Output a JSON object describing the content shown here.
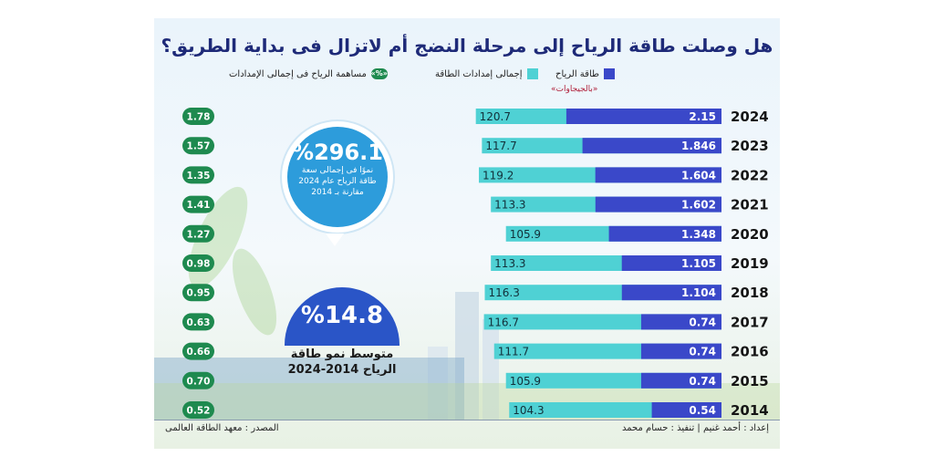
{
  "title": "هل وصلت طاقة الرياح إلى مرحلة النضج أم لاتزال فى بداية الطريق؟",
  "legend": {
    "wind": "طاقة الرياح",
    "total": "إجمالى إمدادات الطاقة",
    "share": "مساهمة الرياح فى إجمالى الإمدادات",
    "share_badge": "«%»"
  },
  "unit_note": "«بالجيجاوات»",
  "colors": {
    "wind": "#3a48c9",
    "total": "#4fd1d4",
    "share": "#1e8a4f",
    "title": "#1e2a78"
  },
  "highlight_growth": {
    "value": "%296.1",
    "line1": "نموًا فى إجمالى سعة",
    "line2": "طاقة الرياح عام 2024",
    "line3": "مقارنة بـ 2014"
  },
  "highlight_avg": {
    "value": "%14.8",
    "line1": "متوسط نمو طاقة",
    "line2": "الرياح 2014-2024"
  },
  "footer": {
    "source": "المصدر : معهد الطاقة العالمى",
    "credits": "إعداد : أحمد غنيم | تنفيذ : حسام محمد"
  },
  "chart_data": {
    "type": "bar",
    "categories": [
      "2024",
      "2023",
      "2022",
      "2021",
      "2020",
      "2019",
      "2018",
      "2017",
      "2016",
      "2015",
      "2014"
    ],
    "series": [
      {
        "name": "طاقة الرياح",
        "values": [
          2.15,
          1.846,
          1.604,
          1.602,
          1.348,
          1.105,
          1.104,
          0.74,
          0.74,
          0.74,
          0.54
        ]
      },
      {
        "name": "إجمالى إمدادات الطاقة",
        "values": [
          120.7,
          117.7,
          119.2,
          113.3,
          105.9,
          113.3,
          116.3,
          116.7,
          111.7,
          105.9,
          104.3
        ]
      },
      {
        "name": "مساهمة الرياح فى إجمالى الإمدادات",
        "labels": [
          "1.78",
          "1.57",
          "1.35",
          "1.41",
          "1.27",
          "0.98",
          "0.95",
          "0.63",
          "0.66",
          "0.70",
          "0.52"
        ]
      }
    ],
    "wind_labels": [
      "2.15",
      "1.846",
      "1.604",
      "1.602",
      "1.348",
      "1.105",
      "1.104",
      "0.74",
      "0.74",
      "0.74",
      "0.54"
    ],
    "total_labels": [
      "120.7",
      "117.7",
      "119.2",
      "113.3",
      "105.9",
      "113.3",
      "116.3",
      "116.7",
      "111.7",
      "105.9",
      "104.3"
    ],
    "ylabel": "«بالجيجاوات»"
  }
}
